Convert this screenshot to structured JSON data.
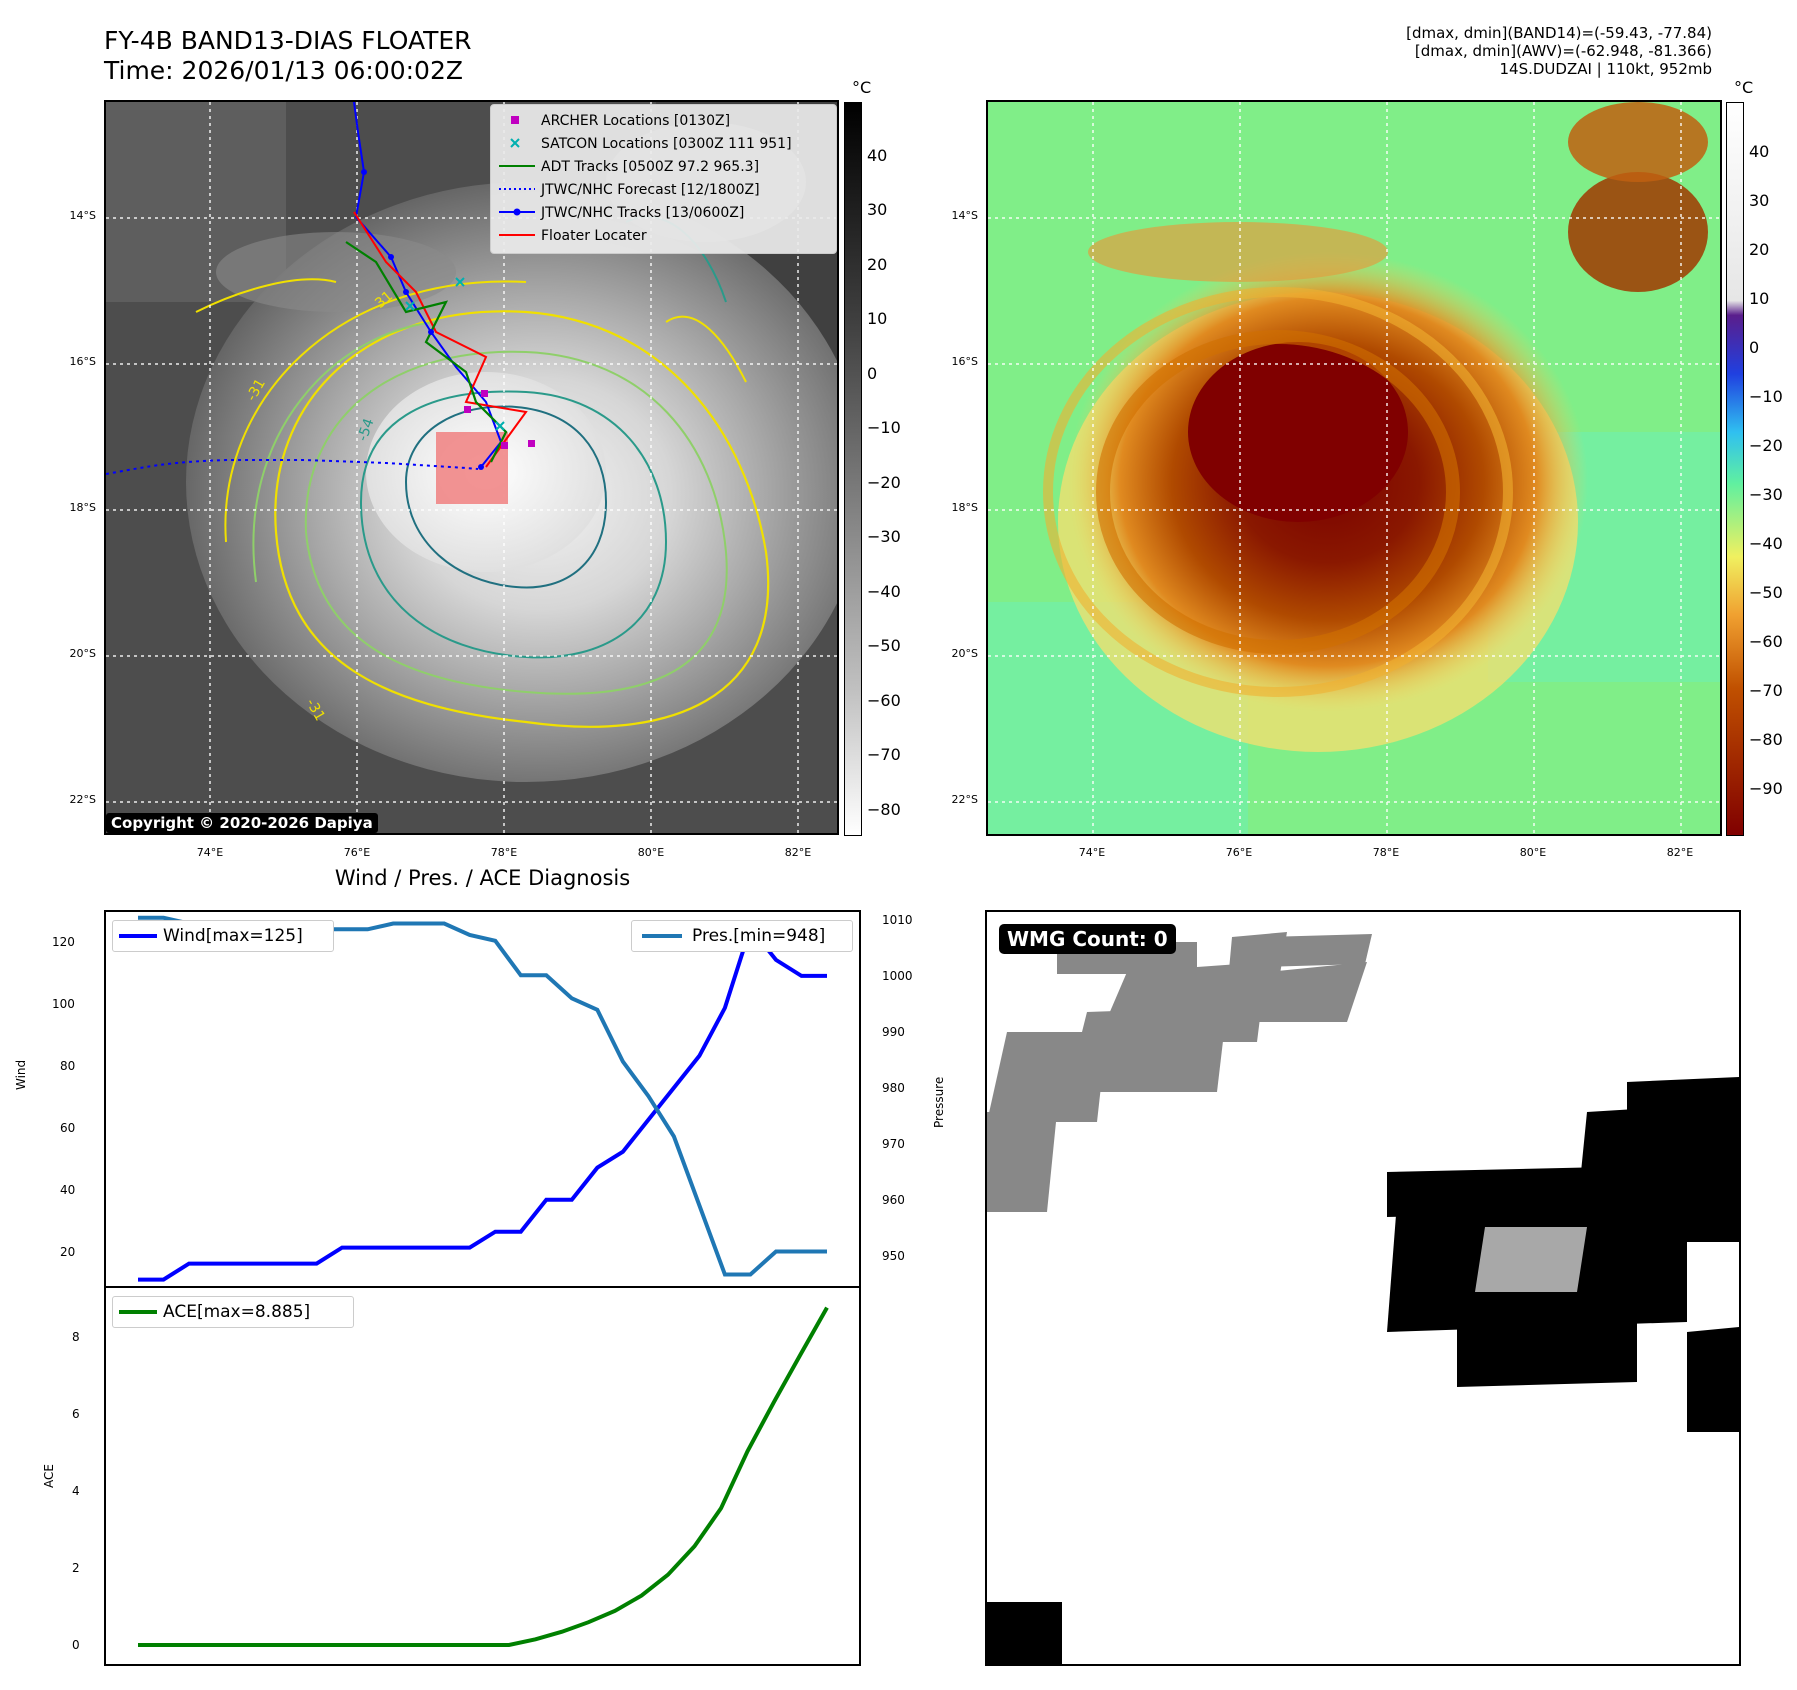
{
  "header": {
    "title_line1": "FY-4B BAND13-DIAS FLOATER",
    "title_line2": "Time: 2026/01/13 06:00:02Z",
    "meta_line1": "[dmax, dmin](BAND14)=(-59.43, -77.84)",
    "meta_line2": "[dmax, dmin](AWV)=(-62.948, -81.366)",
    "meta_line3": "14S.DUDZAI | 110kt, 952mb"
  },
  "map": {
    "lat_labels": [
      "14°S",
      "16°S",
      "18°S",
      "20°S",
      "22°S"
    ],
    "lon_labels": [
      "74°E",
      "76°E",
      "78°E",
      "80°E",
      "82°E"
    ],
    "copyright": "Copyright © 2020-2026 Dapiya",
    "contour_label": "-31",
    "contour_label_2": "-54",
    "legend": [
      {
        "label": "ARCHER Locations [0130Z]",
        "color": "#c000c0",
        "marker": "square"
      },
      {
        "label": "SATCON Locations [0300Z 111 951]",
        "color": "#00b0b0",
        "marker": "x"
      },
      {
        "label": "ADT Tracks [0500Z 97.2 965.3]",
        "color": "#008000",
        "marker": "line"
      },
      {
        "label": "JTWC/NHC Forecast [12/1800Z]",
        "color": "#0000ff",
        "marker": "dotted"
      },
      {
        "label": "JTWC/NHC Tracks [13/0600Z]",
        "color": "#0000ff",
        "marker": "line-dot"
      },
      {
        "label": "Floater Locater",
        "color": "#ff0000",
        "marker": "line"
      }
    ]
  },
  "colorbars": {
    "unit": "°C",
    "left_ticks": [
      "40",
      "30",
      "20",
      "10",
      "0",
      "−10",
      "−20",
      "−30",
      "−40",
      "−50",
      "−60",
      "−70",
      "−80"
    ],
    "right_ticks": [
      "40",
      "30",
      "20",
      "10",
      "0",
      "−10",
      "−20",
      "−30",
      "−40",
      "−50",
      "−60",
      "−70",
      "−80",
      "−90"
    ]
  },
  "diagnosis": {
    "title": "Wind / Pres. / ACE Diagnosis",
    "wind_label": "Wind",
    "pressure_label": "Pressure",
    "ace_label": "ACE",
    "wind_legend": "Wind[max=125]",
    "pres_legend": "Pres.[min=948]",
    "ace_legend": "ACE[max=8.885]",
    "wind_ticks": [
      "120",
      "100",
      "80",
      "60",
      "40",
      "20"
    ],
    "pres_ticks": [
      "1010",
      "1000",
      "990",
      "980",
      "970",
      "960",
      "950"
    ],
    "ace_ticks": [
      "8",
      "6",
      "4",
      "2",
      "0"
    ],
    "colors": {
      "wind": "#0000ff",
      "pressure": "#1f77b4",
      "ace": "#008000"
    }
  },
  "chart_data": [
    {
      "type": "line",
      "title": "Wind / Pres. / ACE Diagnosis",
      "ylabel": "Wind",
      "ylim": [
        13,
        130
      ],
      "series": [
        {
          "name": "Wind[max=125]",
          "values": [
            15,
            15,
            20,
            20,
            20,
            20,
            20,
            20,
            25,
            25,
            25,
            25,
            25,
            25,
            30,
            30,
            40,
            40,
            50,
            55,
            65,
            75,
            85,
            100,
            125,
            115,
            110,
            110
          ]
        }
      ]
    },
    {
      "type": "line",
      "ylabel": "Pressure",
      "ylim": [
        946,
        1011
      ],
      "series": [
        {
          "name": "Pres.[min=948]",
          "values": [
            1010,
            1010,
            1009,
            1008,
            1008,
            1008,
            1008,
            1008,
            1008,
            1008,
            1009,
            1009,
            1009,
            1007,
            1006,
            1000,
            1000,
            996,
            994,
            985,
            979,
            972,
            960,
            948,
            948,
            952,
            952,
            952
          ]
        }
      ]
    },
    {
      "type": "line",
      "ylabel": "ACE",
      "ylim": [
        -0.5,
        9.4
      ],
      "series": [
        {
          "name": "ACE[max=8.885]",
          "values": [
            0,
            0,
            0,
            0,
            0,
            0,
            0,
            0,
            0,
            0,
            0,
            0,
            0,
            0,
            0,
            0.15,
            0.35,
            0.6,
            0.9,
            1.3,
            1.85,
            2.6,
            3.6,
            5.1,
            6.4,
            7.65,
            8.885
          ]
        }
      ]
    }
  ],
  "wmg": {
    "badge": "WMG Count: 0"
  }
}
